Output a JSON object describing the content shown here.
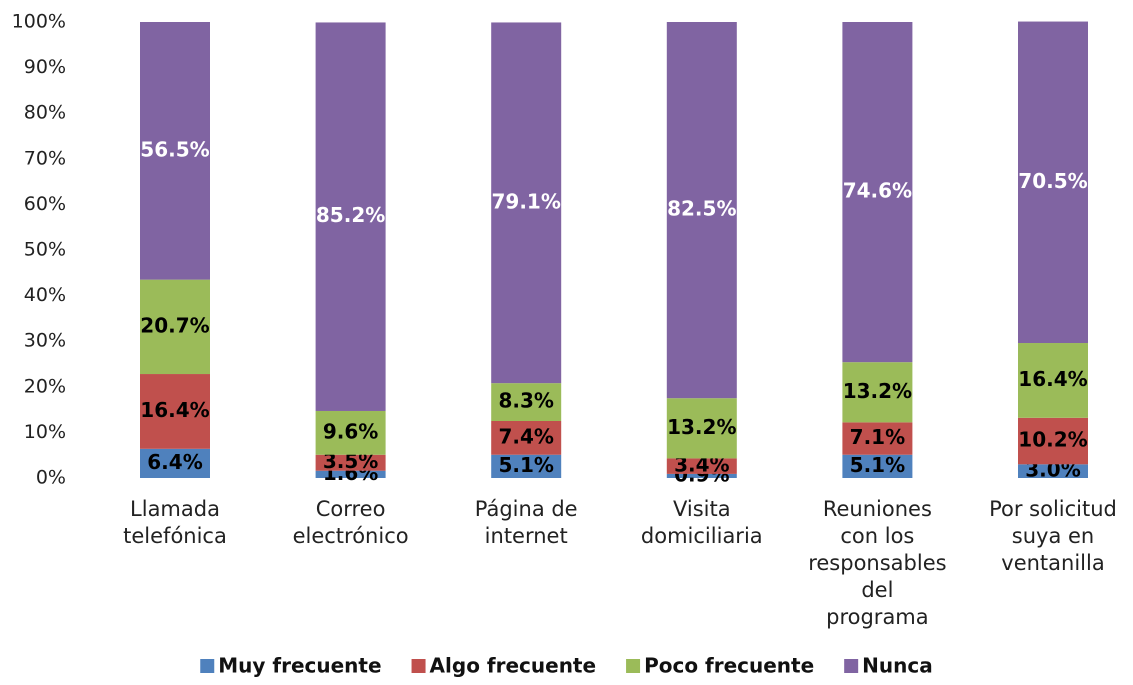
{
  "chart_data": {
    "type": "stacked_bar",
    "categories": [
      "Llamada\ntelefónica",
      "Correo\nelectrónico",
      "Página de\ninternet",
      "Visita\ndomiciliaria",
      "Reuniones\ncon los\nresponsables\ndel\nprograma",
      "Por solicitud\nsuya en\nventanilla"
    ],
    "series": [
      {
        "name": "Muy frecuente",
        "color": "#4f81bd",
        "label_color": "#000000",
        "values": [
          6.4,
          1.6,
          5.1,
          0.9,
          5.1,
          3.0
        ],
        "value_labels": [
          "6.4%",
          "1.6%",
          "5.1%",
          "0.9%",
          "5.1%",
          "3.0%"
        ]
      },
      {
        "name": "Algo frecuente",
        "color": "#c0504d",
        "label_color": "#000000",
        "values": [
          16.4,
          3.5,
          7.4,
          3.4,
          7.1,
          10.2
        ],
        "value_labels": [
          "16.4%",
          "3.5%",
          "7.4%",
          "3.4%",
          "7.1%",
          "10.2%"
        ]
      },
      {
        "name": "Poco frecuente",
        "color": "#9bbb59",
        "label_color": "#000000",
        "values": [
          20.7,
          9.6,
          8.3,
          13.2,
          13.2,
          16.4
        ],
        "value_labels": [
          "20.7%",
          "9.6%",
          "8.3%",
          "13.2%",
          "13.2%",
          "16.4%"
        ]
      },
      {
        "name": "Nunca",
        "color": "#8064a2",
        "label_color": "#ffffff",
        "values": [
          56.5,
          85.2,
          79.1,
          82.5,
          74.6,
          70.5
        ],
        "value_labels": [
          "56.5%",
          "85.2%",
          "79.1%",
          "82.5%",
          "74.6%",
          "70.5%"
        ]
      }
    ],
    "ylim": [
      0,
      100
    ],
    "yticks": [
      {
        "value": 0,
        "label": "0%"
      },
      {
        "value": 10,
        "label": "10%"
      },
      {
        "value": 20,
        "label": "20%"
      },
      {
        "value": 30,
        "label": "30%"
      },
      {
        "value": 40,
        "label": "40%"
      },
      {
        "value": 50,
        "label": "50%"
      },
      {
        "value": 60,
        "label": "60%"
      },
      {
        "value": 70,
        "label": "70%"
      },
      {
        "value": 80,
        "label": "80%"
      },
      {
        "value": 90,
        "label": "90%"
      },
      {
        "value": 100,
        "label": "100%"
      }
    ],
    "legend": "bottom"
  }
}
